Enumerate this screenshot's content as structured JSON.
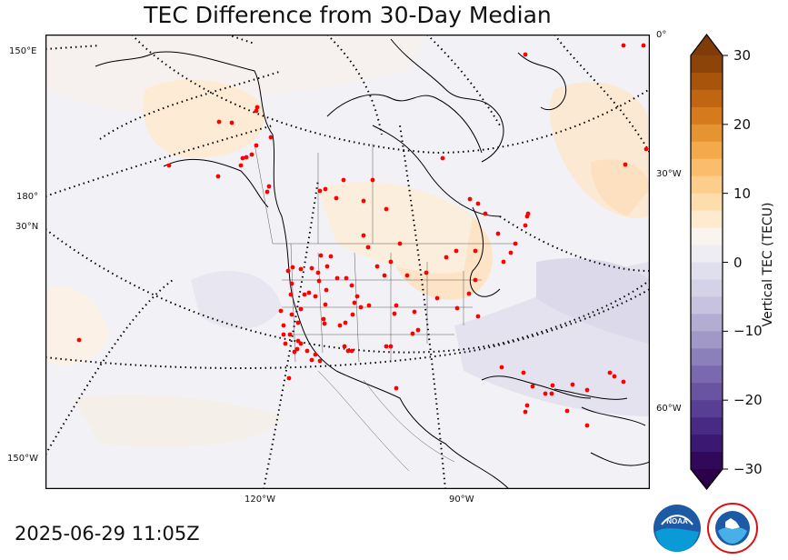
{
  "title": "TEC Difference from 30-Day Median",
  "timestamp": "2025-06-29 11:05Z",
  "graticule_labels": {
    "lat_150e": "150°E",
    "lat_180": "180°",
    "lat_30n": "30°N",
    "lat_150w": "150°W",
    "right_0": "0°",
    "right_30w": "30°W",
    "right_60w": "60°W",
    "bottom_120w": "120°W",
    "bottom_90w": "90°W"
  },
  "colorbar": {
    "label": "Vertical TEC (TECU)",
    "min": -30,
    "max": 30,
    "ticks": [
      30,
      20,
      10,
      0,
      -10,
      -20,
      -30
    ],
    "tick_labels": [
      "30",
      "20",
      "10",
      "0",
      "−10",
      "−20",
      "−30"
    ],
    "extend": "both",
    "colors": {
      "strong_positive": "#7f3b08",
      "positive": "#fdb863",
      "neutral": "#f7f7f7",
      "negative": "#b2abd2",
      "strong_negative": "#2d004b"
    }
  },
  "stations": {
    "color": "#ff0000",
    "count_visible": 120
  },
  "logos": {
    "noaa": "NOAA",
    "nws": "NATIONAL WEATHER SERVICE"
  }
}
